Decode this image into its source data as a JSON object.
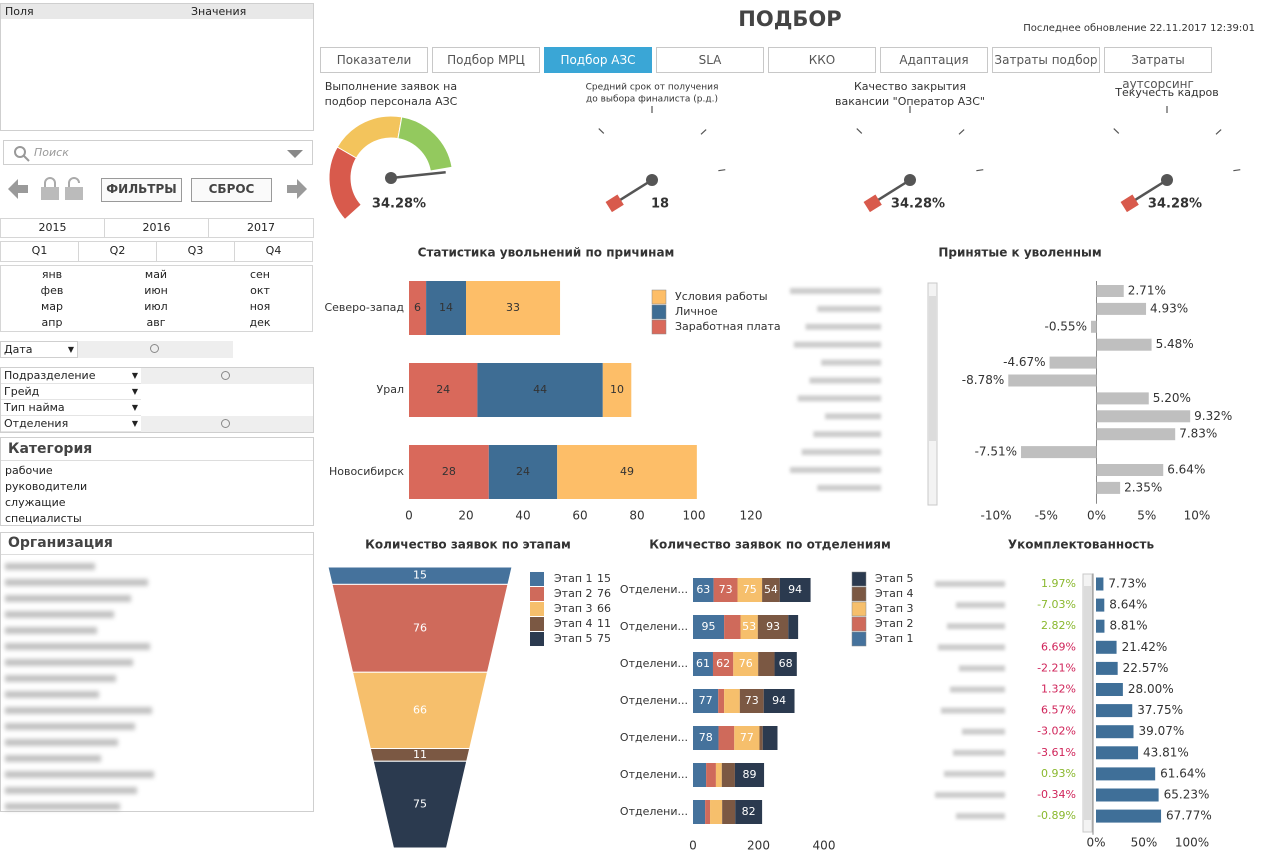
{
  "fields_box": {
    "columns": [
      "Поля",
      "Значения"
    ]
  },
  "search": "Поиск",
  "buttons": [
    "ФИЛЬТРЫ",
    "СБРОС"
  ],
  "years": [
    "2015",
    "2016",
    "2017"
  ],
  "quarters": [
    "Q1",
    "Q2",
    "Q3",
    "Q4"
  ],
  "months": [
    "янв",
    "фев",
    "мар",
    "апр",
    "май",
    "июн",
    "июл",
    "авг",
    "сен",
    "окт",
    "ноя",
    "дек"
  ],
  "date_field": "Дата",
  "fields": [
    "Подразделение",
    "Грейд",
    "Тип найма",
    "Отделения"
  ],
  "category": {
    "title": "Категория",
    "items": [
      "рабочие",
      "руководители",
      "служащие",
      "специалисты"
    ]
  },
  "organization": {
    "title": "Организация"
  },
  "header": {
    "title": "ПОДБОР",
    "updated": "Последнее обновление 22.11.2017 12:39:01"
  },
  "tabs": [
    "Показатели",
    "Подбор МРЦ",
    "Подбор АЗС",
    "SLA",
    "ККО",
    "Адаптация",
    "Затраты подбор",
    "Затраты аутсорсинг"
  ],
  "active_tab": 2,
  "chart_data": [
    {
      "type": "gauge",
      "title": [
        "Выполнение заявок на",
        "подбор персонала АЗС"
      ],
      "value": 34.28,
      "value_label": "34.28%",
      "band_colors": [
        "#d85a4c",
        "#f3c45c",
        "#93c95e"
      ]
    },
    {
      "type": "gauge",
      "title": [
        "Средний срок от получения",
        "до выбора финалиста (р.д.)"
      ],
      "value": 18,
      "band_colors": [
        "#d85a4c"
      ]
    },
    {
      "type": "gauge",
      "title": [
        "Качество закрытия",
        "вакансии \"Оператор АЗС\""
      ],
      "value": 34.28,
      "value_label": "34.28%",
      "band_colors": [
        "#d85a4c"
      ]
    },
    {
      "type": "gauge",
      "title": [
        "Текучесть кадров"
      ],
      "value": 34.28,
      "value_label": "34.28%",
      "band_colors": [
        "#d85a4c"
      ]
    },
    {
      "type": "stacked_bar_h",
      "title": "Статистика увольнений по причинам",
      "categories": [
        "Северо-запад",
        "Урал",
        "Новосибирск"
      ],
      "series": [
        {
          "name": "Заработная плата",
          "color": "#d9695b",
          "values": [
            6,
            24,
            28
          ]
        },
        {
          "name": "Личное",
          "color": "#3e6d94",
          "values": [
            14,
            44,
            24
          ]
        },
        {
          "name": "Условия работы",
          "color": "#fdbe68",
          "values": [
            33,
            10,
            49
          ]
        }
      ],
      "xlim": [
        0,
        120
      ],
      "xticks": [
        0,
        20,
        40,
        60,
        80,
        100,
        120
      ]
    },
    {
      "type": "bar_h",
      "title": "Принятые к уволенным",
      "categories": [
        null,
        null,
        null,
        null,
        null,
        null,
        null,
        null,
        null,
        null,
        null,
        null
      ],
      "values": [
        2.71,
        4.93,
        -0.55,
        5.48,
        -4.67,
        -8.78,
        5.2,
        9.32,
        7.83,
        -7.51,
        6.64,
        2.35
      ],
      "value_labels": [
        "2.71%",
        "4.93%",
        "-0.55%",
        "5.48%",
        "-4.67%",
        "-8.78%",
        "5.20%",
        "9.32%",
        "7.83%",
        "-7.51%",
        "6.64%",
        "2.35%"
      ],
      "color": "#bfbfbf",
      "xlim": [
        -10,
        10
      ],
      "xticks": [
        {
          "value": -10,
          "label": "-10%"
        },
        {
          "value": -5,
          "label": "-5%"
        },
        {
          "value": 0,
          "label": "0%"
        },
        {
          "value": 5,
          "label": "5%"
        },
        {
          "value": 10,
          "label": "10%"
        }
      ]
    },
    {
      "type": "funnel",
      "title": "Количество заявок по этапам",
      "categories": [
        "Этап 1",
        "Этап 2",
        "Этап 3",
        "Этап 4",
        "Этап 5"
      ],
      "values": [
        15,
        76,
        66,
        11,
        75
      ],
      "colors": [
        "#45729c",
        "#cf6a5b",
        "#f6bf6c",
        "#7b5843",
        "#2b3a4f"
      ]
    },
    {
      "type": "stacked_bar_h",
      "title": "Количество заявок по отделениям",
      "categories": [
        "Отделени...",
        "Отделени...",
        "Отделени...",
        "Отделени...",
        "Отделени...",
        "Отделени...",
        "Отделени..."
      ],
      "series": [
        {
          "name": "Этап 1",
          "color": "#45729c",
          "values": [
            63,
            95,
            61,
            77,
            78,
            40,
            37
          ]
        },
        {
          "name": "Этап 2",
          "color": "#cf6a5b",
          "values": [
            73,
            50,
            62,
            18,
            48,
            30,
            15
          ]
        },
        {
          "name": "Этап 3",
          "color": "#f6bf6c",
          "values": [
            75,
            53,
            76,
            48,
            77,
            18,
            37
          ]
        },
        {
          "name": "Этап 4",
          "color": "#7b5843",
          "values": [
            54,
            93,
            50,
            73,
            10,
            40,
            40
          ]
        },
        {
          "name": "Этап 5",
          "color": "#2b3a4f",
          "values": [
            94,
            30,
            68,
            94,
            45,
            89,
            82
          ]
        }
      ],
      "xlim": [
        0,
        400
      ],
      "xticks": [
        0,
        200,
        400
      ]
    },
    {
      "type": "bar_h",
      "title": "Укомплектованность",
      "categories": [
        null,
        null,
        null,
        null,
        null,
        null,
        null,
        null,
        null,
        null,
        null,
        null
      ],
      "values": [
        7.73,
        8.64,
        8.81,
        21.42,
        22.57,
        28.0,
        37.75,
        39.07,
        43.81,
        61.64,
        65.23,
        67.77
      ],
      "value_labels": [
        "7.73%",
        "8.64%",
        "8.81%",
        "21.42%",
        "22.57%",
        "28.00%",
        "37.75%",
        "39.07%",
        "43.81%",
        "61.64%",
        "65.23%",
        "67.77%"
      ],
      "deltas": [
        1.97,
        -7.03,
        2.82,
        6.69,
        -2.21,
        1.32,
        6.57,
        -3.02,
        -3.61,
        0.93,
        -0.34,
        -0.89
      ],
      "delta_labels": [
        "1.97%",
        "-7.03%",
        "2.82%",
        "6.69%",
        "-2.21%",
        "1.32%",
        "6.57%",
        "-3.02%",
        "-3.61%",
        "0.93%",
        "-0.34%",
        "-0.89%"
      ],
      "delta_colors": [
        "#8ab82e",
        "#8ab82e",
        "#8ab82e",
        "#d0245a",
        "#d0245a",
        "#d0245a",
        "#d0245a",
        "#d0245a",
        "#d0245a",
        "#8ab82e",
        "#d0245a",
        "#8ab82e"
      ],
      "color": "#3f6f98",
      "xlim": [
        0,
        100
      ],
      "xticks": [
        {
          "value": 0,
          "label": "0%"
        },
        {
          "value": 50,
          "label": "50%"
        },
        {
          "value": 100,
          "label": "100%"
        }
      ]
    }
  ]
}
